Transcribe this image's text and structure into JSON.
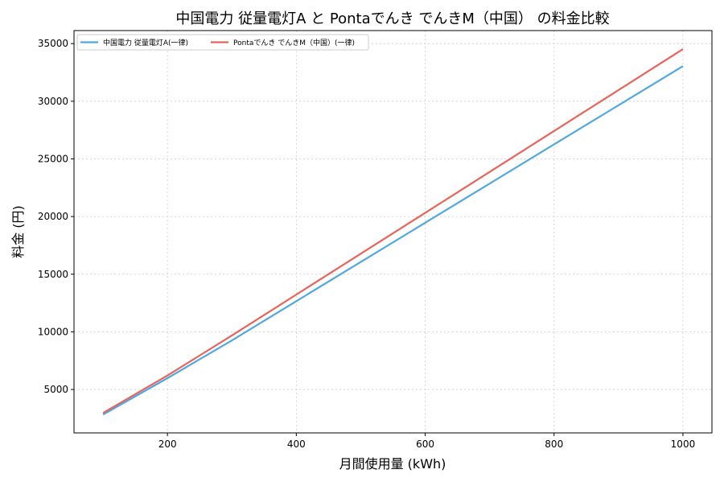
{
  "chart_data": {
    "type": "line",
    "title": "中国電力 従量電灯A と Pontaでんき でんきM（中国） の料金比較",
    "xlabel": "月間使用量 (kWh)",
    "ylabel": "料金 (円)",
    "xlim": [
      55,
      1045
    ],
    "ylim": [
      1235,
      36130
    ],
    "xticks": [
      200,
      400,
      600,
      800,
      1000
    ],
    "yticks": [
      5000,
      10000,
      15000,
      20000,
      25000,
      30000,
      35000
    ],
    "grid": true,
    "legend_position": "top-left",
    "x": [
      100,
      200,
      300,
      400,
      500,
      600,
      700,
      800,
      900,
      1000
    ],
    "series": [
      {
        "name": "中国電力 従量電灯A(一律)",
        "color": "#4fa8e0",
        "values": [
          2820,
          5980,
          9260,
          12660,
          16060,
          19460,
          22860,
          26260,
          29650,
          33050
        ]
      },
      {
        "name": "Pontaでんき でんきM（中国）(一律)",
        "color": "#e8645a",
        "values": [
          2960,
          6210,
          9680,
          13230,
          16780,
          20320,
          23870,
          27420,
          30970,
          34520
        ]
      }
    ]
  }
}
